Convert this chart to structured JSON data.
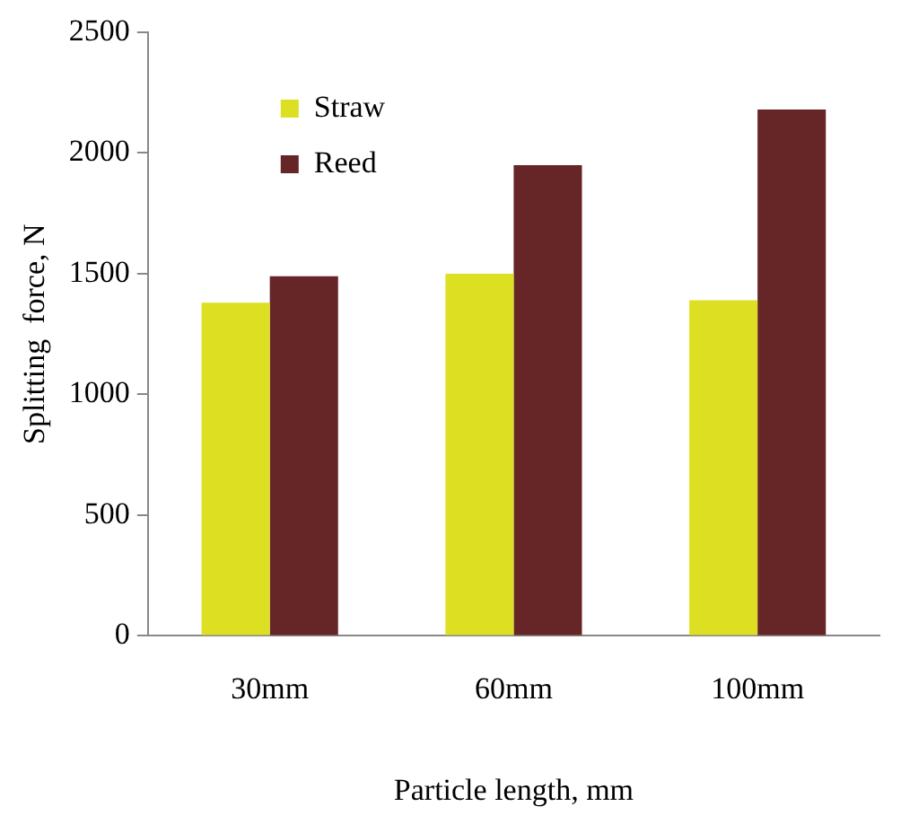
{
  "chart_data": {
    "type": "bar",
    "xlabel": "Particle length, mm",
    "ylabel": "Splitting  force, N",
    "categories": [
      "30mm",
      "60mm",
      "100mm"
    ],
    "series": [
      {
        "name": "Straw",
        "color": "#dde022",
        "values": [
          1380,
          1500,
          1390
        ]
      },
      {
        "name": "Reed",
        "color": "#662526",
        "values": [
          1490,
          1950,
          2180
        ]
      }
    ],
    "ylim": [
      0,
      2500
    ],
    "yticks": [
      0,
      500,
      1000,
      1500,
      2000,
      2500
    ],
    "grid": false,
    "legend": "top left"
  }
}
